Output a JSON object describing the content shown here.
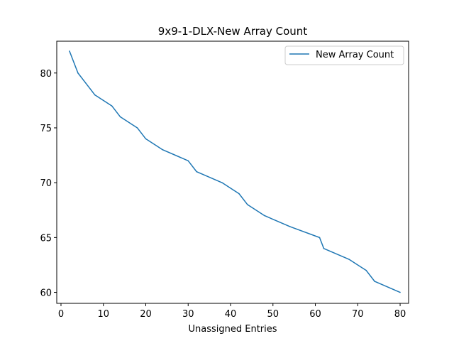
{
  "chart_data": {
    "type": "line",
    "title": "9x9-1-DLX-New Array Count",
    "xlabel": "Unassigned Entries",
    "ylabel": "",
    "xlim": [
      -1,
      82
    ],
    "ylim": [
      59.0,
      82.9
    ],
    "xticks": [
      0,
      10,
      20,
      30,
      40,
      50,
      60,
      70,
      80
    ],
    "yticks": [
      60,
      65,
      70,
      75,
      80
    ],
    "legend": "top-right",
    "grid": false,
    "series": [
      {
        "name": "New Array Count",
        "color": "#1f77b4",
        "x": [
          2,
          4,
          8,
          12,
          14,
          18,
          20,
          24,
          30,
          32,
          38,
          42,
          44,
          48,
          54,
          61,
          62,
          68,
          72,
          74,
          80
        ],
        "y": [
          82,
          80,
          78,
          77,
          76,
          75,
          74,
          73,
          72,
          71,
          70,
          69,
          68,
          67,
          66,
          65,
          64,
          63,
          62,
          61,
          60
        ]
      }
    ]
  }
}
